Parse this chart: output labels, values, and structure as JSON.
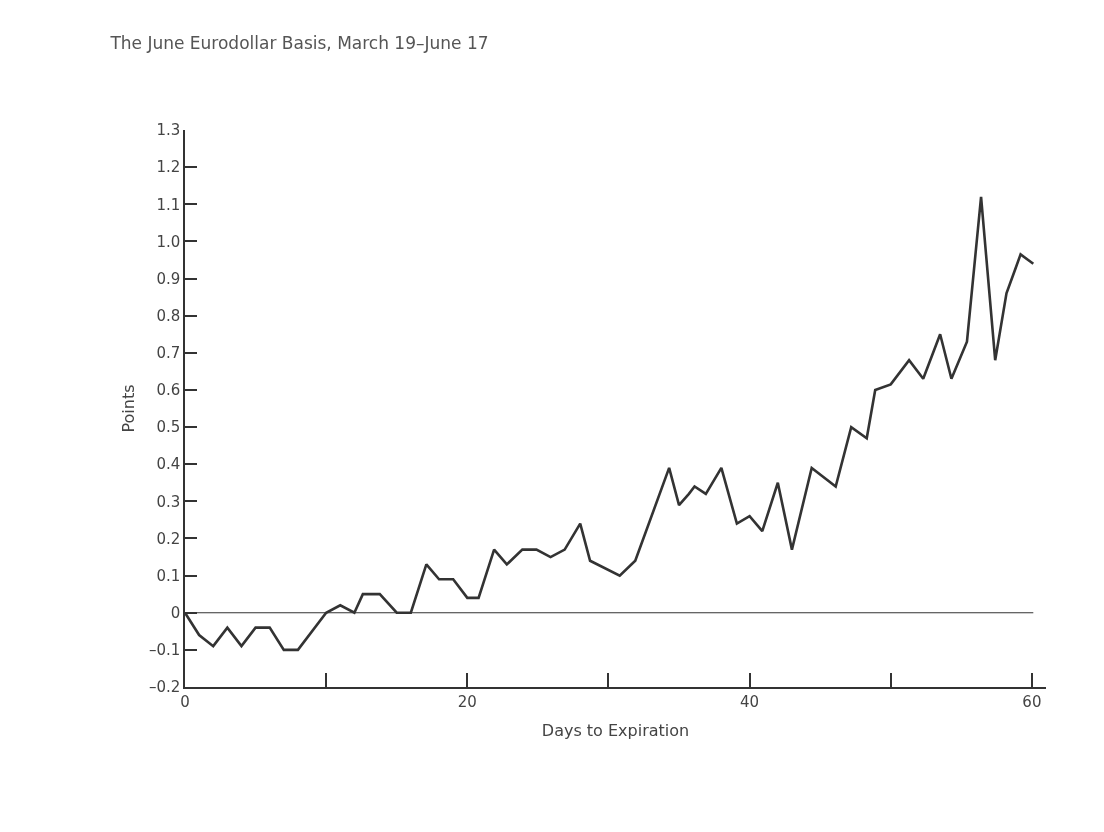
{
  "chart_data": {
    "type": "line",
    "title": "The June Eurodollar Basis, March 19–June 17",
    "xlabel": "Days to Expiration",
    "ylabel": "Points",
    "x": [
      0,
      1,
      2,
      3,
      4,
      5,
      6,
      7,
      8,
      10,
      11,
      12,
      12.6,
      13.8,
      15,
      16,
      17.1,
      18,
      19,
      20,
      20.8,
      21.9,
      22.8,
      23.9,
      24.9,
      25.9,
      26.9,
      28,
      28.7,
      30.8,
      31.9,
      34.3,
      35,
      35.7,
      36.1,
      36.9,
      38,
      39.1,
      40,
      40.9,
      42,
      43,
      44.4,
      46.1,
      47.2,
      48.3,
      48.9,
      50,
      51.3,
      52.3,
      53.5,
      54.3,
      55.4,
      56.4,
      57.4,
      58.2,
      59.2,
      60.1
    ],
    "series": [
      {
        "color": "#333333",
        "values": [
          0,
          -0.06,
          -0.09,
          -0.04,
          -0.09,
          -0.04,
          -0.04,
          -0.1,
          -0.1,
          0,
          0.02,
          0,
          0.05,
          0.05,
          0,
          0,
          0.13,
          0.09,
          0.09,
          0.04,
          0.04,
          0.17,
          0.13,
          0.17,
          0.17,
          0.15,
          0.17,
          0.24,
          0.14,
          0.1,
          0.14,
          0.39,
          0.29,
          0.32,
          0.34,
          0.32,
          0.39,
          0.24,
          0.26,
          0.22,
          0.35,
          0.17,
          0.39,
          0.34,
          0.5,
          0.47,
          0.6,
          0.615,
          0.68,
          0.63,
          0.75,
          0.63,
          0.73,
          1.12,
          0.68,
          0.86,
          0.965,
          0.94
        ]
      }
    ],
    "xlim": [
      0,
      61
    ],
    "xticks": [
      0,
      {
        "value": 10,
        "label": null
      },
      20,
      {
        "value": 30,
        "label": null
      },
      40,
      {
        "value": 50,
        "label": null
      },
      60
    ],
    "ylim": [
      -0.2,
      1.3
    ],
    "yticks": [
      {
        "value": -0.2,
        "label": "–0.2"
      },
      {
        "value": -0.1,
        "label": "–0.1"
      },
      0,
      {
        "value": 0.1,
        "label": "0.1"
      },
      {
        "value": 0.2,
        "label": "0.2"
      },
      {
        "value": 0.3,
        "label": "0.3"
      },
      {
        "value": 0.4,
        "label": "0.4"
      },
      {
        "value": 0.5,
        "label": "0.5"
      },
      {
        "value": 0.6,
        "label": "0.6"
      },
      {
        "value": 0.7,
        "label": "0.7"
      },
      {
        "value": 0.8,
        "label": "0.8"
      },
      {
        "value": 0.9,
        "label": "0.9"
      },
      {
        "value": 1.0,
        "label": "1.0"
      },
      {
        "value": 1.1,
        "label": "1.1"
      },
      {
        "value": 1.2,
        "label": "1.2"
      },
      {
        "value": 1.3,
        "label": "1.3"
      }
    ],
    "ref_lines": [
      {
        "axis": "y",
        "value": 0,
        "color": "#333333"
      }
    ],
    "grid": false,
    "marker": "none",
    "line_style": "solid"
  }
}
